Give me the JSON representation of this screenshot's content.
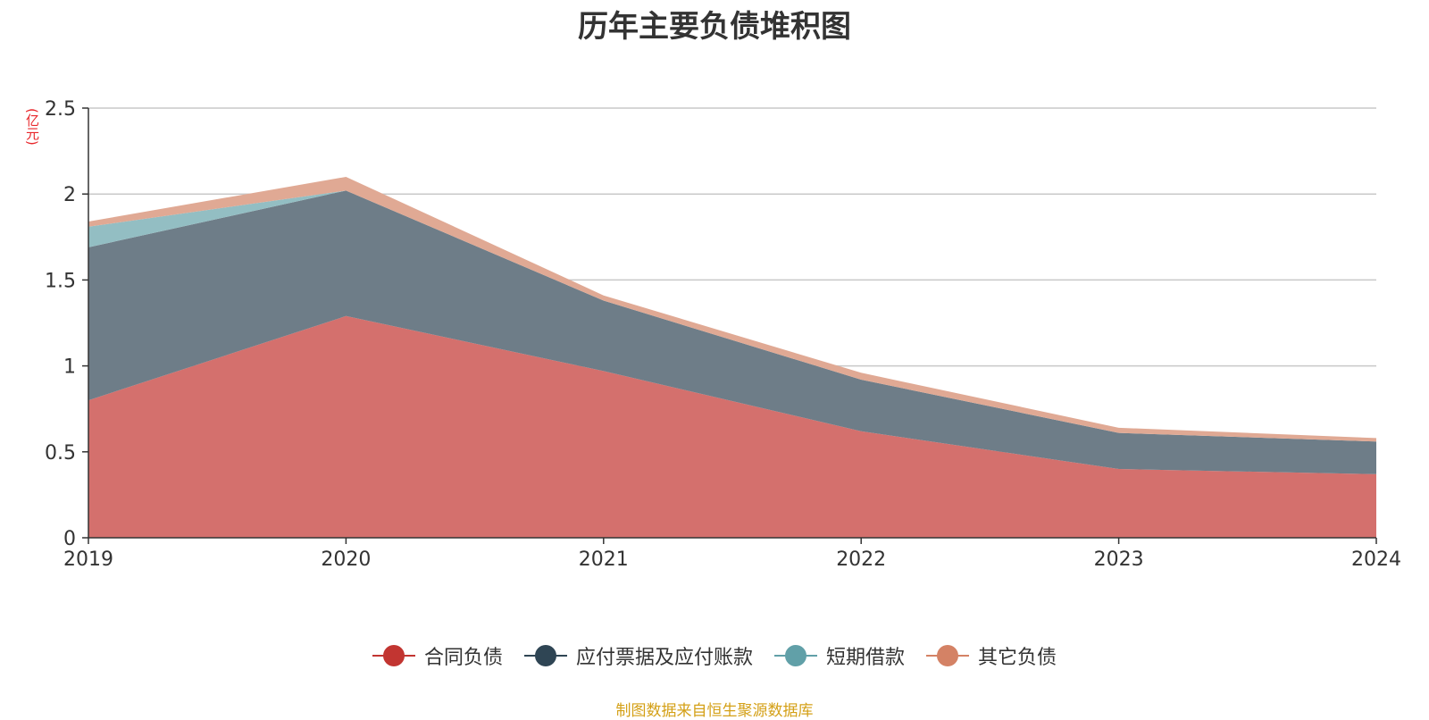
{
  "title": "历年主要负债堆积图",
  "unit_label": "(亿元)",
  "source": "制图数据来自恒生聚源数据库",
  "chart_data": {
    "type": "area",
    "stacked": true,
    "title": "历年主要负债堆积图",
    "ylabel": "(亿元)",
    "xlabel": "",
    "x": [
      "2019",
      "2020",
      "2021",
      "2022",
      "2023",
      "2024"
    ],
    "ylim": [
      0,
      2.5
    ],
    "yticks": [
      "0",
      "0.5",
      "1",
      "1.5",
      "2",
      "2.5"
    ],
    "grid": true,
    "legend_position": "bottom",
    "series": [
      {
        "name": "合同负债",
        "color": "#c23531",
        "fill": "#d4706d",
        "values": [
          0.8,
          1.29,
          0.97,
          0.62,
          0.4,
          0.37
        ]
      },
      {
        "name": "应付票据及应付账款",
        "color": "#2f4554",
        "fill": "#6e7d88",
        "values": [
          0.89,
          0.73,
          0.41,
          0.3,
          0.21,
          0.19
        ]
      },
      {
        "name": "短期借款",
        "color": "#61a0a8",
        "fill": "#93bec3",
        "values": [
          0.12,
          0.0,
          0.0,
          0.0,
          0.0,
          0.0
        ]
      },
      {
        "name": "其它负债",
        "color": "#d48265",
        "fill": "#e0a994",
        "values": [
          0.03,
          0.08,
          0.03,
          0.04,
          0.03,
          0.02
        ]
      }
    ]
  }
}
